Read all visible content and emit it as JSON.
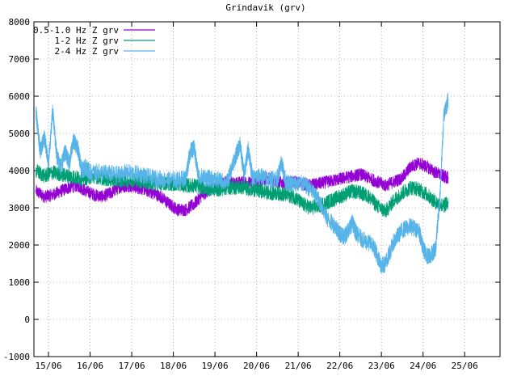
{
  "chart_data": {
    "type": "line",
    "title": "Grindavik (grv)",
    "xlabel": "",
    "ylabel": "",
    "ylim": [
      -1000,
      8000
    ],
    "yticks": [
      -1000,
      0,
      1000,
      2000,
      3000,
      4000,
      5000,
      6000,
      7000,
      8000
    ],
    "xlim": [
      14.65,
      25.85
    ],
    "xticks": [
      {
        "label": "15/06",
        "x": 15.0
      },
      {
        "label": "16/06",
        "x": 16.0
      },
      {
        "label": "17/06",
        "x": 17.0
      },
      {
        "label": "18/06",
        "x": 18.0
      },
      {
        "label": "19/06",
        "x": 19.0
      },
      {
        "label": "20/06",
        "x": 20.0
      },
      {
        "label": "21/06",
        "x": 21.0
      },
      {
        "label": "22/06",
        "x": 22.0
      },
      {
        "label": "23/06",
        "x": 23.0
      },
      {
        "label": "24/06",
        "x": 24.0
      },
      {
        "label": "25/06",
        "x": 25.0
      }
    ],
    "grid": true,
    "legend_position": "top-left",
    "series": [
      {
        "name": "0.5-1.0 Hz Z grv",
        "color": "#9400d3",
        "x": [
          14.7,
          14.9,
          15.1,
          15.3,
          15.5,
          15.7,
          15.9,
          16.1,
          16.3,
          16.5,
          16.7,
          16.9,
          17.1,
          17.3,
          17.5,
          17.7,
          17.9,
          18.1,
          18.3,
          18.5,
          18.7,
          18.9,
          19.1,
          19.3,
          19.5,
          19.7,
          19.9,
          20.1,
          20.3,
          20.5,
          20.7,
          20.9,
          21.1,
          21.3,
          21.5,
          21.7,
          21.9,
          22.1,
          22.3,
          22.5,
          22.7,
          22.9,
          23.1,
          23.3,
          23.5,
          23.7,
          23.9,
          24.1,
          24.3,
          24.5,
          24.6
        ],
        "values": [
          3450,
          3300,
          3350,
          3450,
          3550,
          3600,
          3450,
          3350,
          3300,
          3400,
          3550,
          3600,
          3550,
          3500,
          3400,
          3300,
          3100,
          2950,
          2950,
          3100,
          3350,
          3500,
          3600,
          3700,
          3650,
          3700,
          3650,
          3750,
          3800,
          3700,
          3650,
          3700,
          3650,
          3600,
          3650,
          3700,
          3750,
          3800,
          3850,
          3900,
          3800,
          3700,
          3600,
          3700,
          3800,
          4100,
          4200,
          4100,
          3950,
          3850,
          3800
        ]
      },
      {
        "name": "1-2 Hz Z grv",
        "color": "#009e73",
        "x": [
          14.7,
          14.9,
          15.1,
          15.3,
          15.5,
          15.7,
          15.9,
          16.1,
          16.3,
          16.5,
          16.7,
          16.9,
          17.1,
          17.3,
          17.5,
          17.7,
          17.9,
          18.1,
          18.3,
          18.5,
          18.7,
          18.9,
          19.1,
          19.3,
          19.5,
          19.7,
          19.9,
          20.1,
          20.3,
          20.5,
          20.7,
          20.9,
          21.1,
          21.3,
          21.5,
          21.7,
          21.9,
          22.1,
          22.3,
          22.5,
          22.7,
          22.9,
          23.1,
          23.3,
          23.5,
          23.7,
          23.9,
          24.1,
          24.3,
          24.5,
          24.6
        ],
        "values": [
          4000,
          3850,
          3950,
          3900,
          3850,
          3800,
          3800,
          3850,
          3800,
          3750,
          3750,
          3750,
          3750,
          3700,
          3650,
          3650,
          3650,
          3650,
          3600,
          3600,
          3550,
          3500,
          3500,
          3550,
          3550,
          3550,
          3500,
          3450,
          3400,
          3400,
          3350,
          3300,
          3100,
          3000,
          3050,
          3150,
          3250,
          3350,
          3450,
          3400,
          3300,
          3050,
          2900,
          3200,
          3400,
          3550,
          3500,
          3350,
          3150,
          3050,
          3150
        ]
      },
      {
        "name": "2-4 Hz Z grv",
        "color": "#56b4e9",
        "x": [
          14.7,
          14.8,
          14.9,
          15.0,
          15.1,
          15.2,
          15.3,
          15.4,
          15.5,
          15.6,
          15.7,
          15.8,
          15.9,
          16.0,
          16.3,
          16.6,
          16.9,
          17.2,
          17.5,
          17.8,
          18.1,
          18.3,
          18.4,
          18.5,
          18.6,
          18.8,
          19.0,
          19.3,
          19.5,
          19.6,
          19.7,
          19.8,
          19.9,
          20.1,
          20.3,
          20.5,
          20.6,
          20.7,
          20.9,
          21.1,
          21.3,
          21.5,
          21.7,
          21.9,
          22.0,
          22.1,
          22.2,
          22.3,
          22.4,
          22.6,
          22.8,
          22.9,
          23.0,
          23.1,
          23.3,
          23.5,
          23.7,
          23.9,
          24.0,
          24.1,
          24.2,
          24.3,
          24.4,
          24.5,
          24.6
        ],
        "values": [
          5600,
          4500,
          4900,
          4200,
          5600,
          4400,
          4100,
          4500,
          4200,
          4800,
          4600,
          4000,
          4100,
          3950,
          3950,
          3900,
          3950,
          3900,
          3800,
          3750,
          3750,
          3800,
          4500,
          4600,
          3850,
          3800,
          3750,
          3700,
          4400,
          4700,
          3900,
          4600,
          3800,
          3850,
          3750,
          3800,
          4200,
          3700,
          3650,
          3650,
          3500,
          3200,
          2700,
          2500,
          2300,
          2200,
          2400,
          2600,
          2300,
          2100,
          2000,
          1700,
          1450,
          1500,
          2100,
          2400,
          2500,
          2400,
          1900,
          1700,
          1750,
          1900,
          3200,
          5500,
          5900
        ]
      }
    ]
  }
}
